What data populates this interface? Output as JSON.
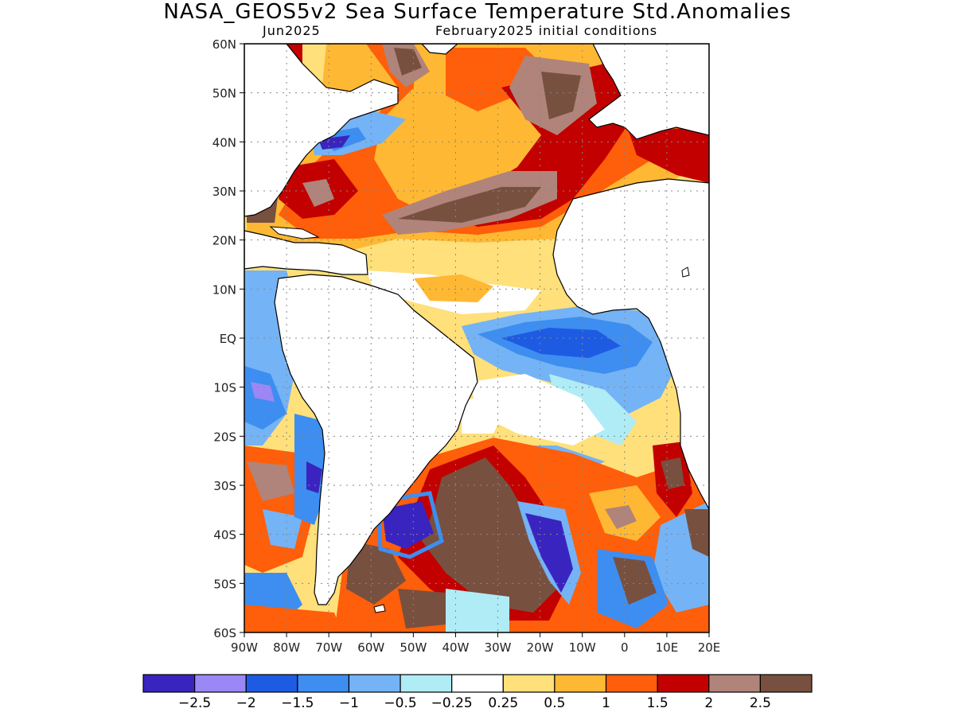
{
  "title": "NASA_GEOS5v2 Sea Surface Temperature Std.Anomalies",
  "subtitle_left": "Jun2025",
  "subtitle_right": "February2025 initial conditions",
  "map": {
    "lon_range": [
      -90,
      20
    ],
    "lat_range": [
      -60,
      60
    ],
    "lat_ticks": [
      {
        "value": 60,
        "label": "60N"
      },
      {
        "value": 50,
        "label": "50N"
      },
      {
        "value": 40,
        "label": "40N"
      },
      {
        "value": 30,
        "label": "30N"
      },
      {
        "value": 20,
        "label": "20N"
      },
      {
        "value": 10,
        "label": "10N"
      },
      {
        "value": 0,
        "label": "EQ"
      },
      {
        "value": -10,
        "label": "10S"
      },
      {
        "value": -20,
        "label": "20S"
      },
      {
        "value": -30,
        "label": "30S"
      },
      {
        "value": -40,
        "label": "40S"
      },
      {
        "value": -50,
        "label": "50S"
      },
      {
        "value": -60,
        "label": "60S"
      }
    ],
    "lon_ticks": [
      {
        "value": -90,
        "label": "90W"
      },
      {
        "value": -80,
        "label": "80W"
      },
      {
        "value": -70,
        "label": "70W"
      },
      {
        "value": -60,
        "label": "60W"
      },
      {
        "value": -50,
        "label": "50W"
      },
      {
        "value": -40,
        "label": "40W"
      },
      {
        "value": -30,
        "label": "30W"
      },
      {
        "value": -20,
        "label": "20W"
      },
      {
        "value": -10,
        "label": "10W"
      },
      {
        "value": 0,
        "label": "0"
      },
      {
        "value": 10,
        "label": "10E"
      },
      {
        "value": 20,
        "label": "20E"
      }
    ],
    "grid": true
  },
  "colorbar": {
    "colors": [
      "#3a24bf",
      "#9b87f5",
      "#1e5be3",
      "#3d8ef0",
      "#74b3f5",
      "#b0ecf6",
      "#ffffff",
      "#ffe07a",
      "#ffb833",
      "#ff5e0a",
      "#c20000",
      "#b0847a",
      "#78503f"
    ],
    "labels": [
      "−2.5",
      "−2",
      "−1.5",
      "−1",
      "−0.5",
      "−0.25",
      "0.25",
      "0.5",
      "1",
      "1.5",
      "2",
      "2.5"
    ]
  }
}
